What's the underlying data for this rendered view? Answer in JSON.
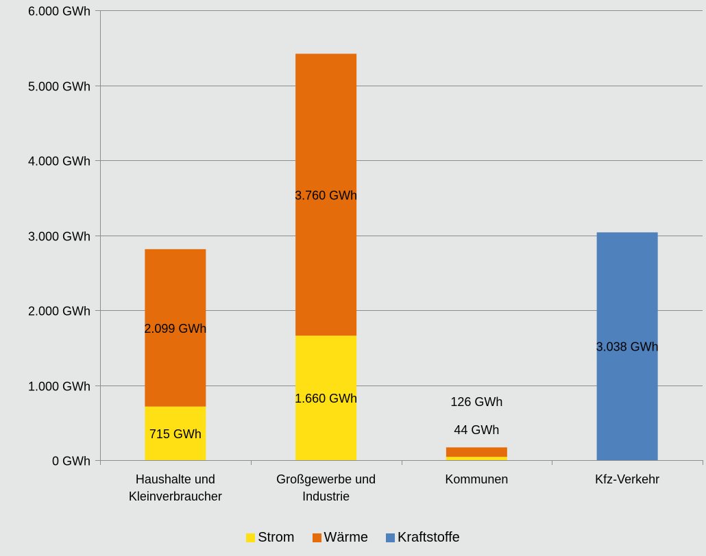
{
  "chart_data": {
    "type": "bar",
    "stacked": true,
    "categories": [
      [
        "Haushalte und",
        "Kleinverbraucher"
      ],
      [
        "Großgewerbe und",
        "Industrie"
      ],
      [
        "Kommunen"
      ],
      [
        "Kfz-Verkehr"
      ]
    ],
    "series": [
      {
        "name": "Strom",
        "color": "#ffe014",
        "values": [
          715,
          1660,
          44,
          null
        ],
        "labels": [
          "715 GWh",
          "1.660 GWh",
          "44 GWh",
          ""
        ]
      },
      {
        "name": "Wärme",
        "color": "#e46c0a",
        "values": [
          2099,
          3760,
          126,
          null
        ],
        "labels": [
          "2.099 GWh",
          "3.760 GWh",
          "126 GWh",
          ""
        ]
      },
      {
        "name": "Kraftstoffe",
        "color": "#4f81bd",
        "values": [
          null,
          null,
          null,
          3038
        ],
        "labels": [
          "",
          "",
          "",
          "3.038 GWh"
        ]
      }
    ],
    "ylim": [
      0,
      6000
    ],
    "yticks": [
      0,
      1000,
      2000,
      3000,
      4000,
      5000,
      6000
    ],
    "ytick_labels": [
      "0 GWh",
      "1.000 GWh",
      "2.000 GWh",
      "3.000 GWh",
      "4.000 GWh",
      "5.000 GWh",
      "6.000 GWh"
    ],
    "grid": true,
    "legend_position": "bottom"
  }
}
